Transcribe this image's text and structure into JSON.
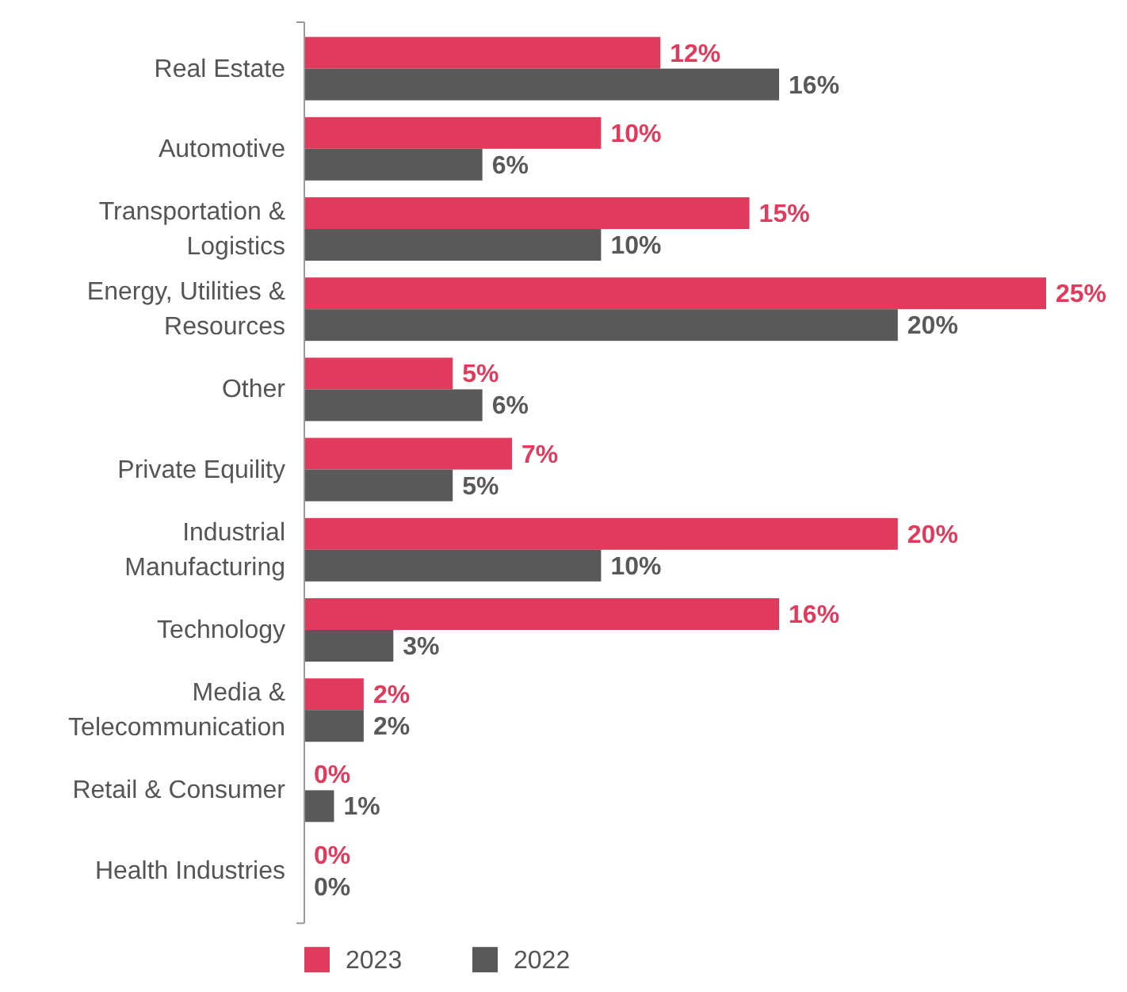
{
  "chart_data": {
    "type": "bar",
    "orientation": "horizontal",
    "relative": false,
    "legend": "bottom left",
    "categories": [
      "Real Estate",
      "Automotive",
      "Transportation & Logistics",
      "Energy, Utilities & Resources",
      "Other",
      "Private Equility",
      "Industrial Manufacturing",
      "Technology",
      "Media & Telecommunication",
      "Retail & Consumer",
      "Health Industries"
    ],
    "series": [
      {
        "name": "2023",
        "color": "#e03a5c",
        "values": [
          12,
          10,
          15,
          25,
          5,
          7,
          20,
          16,
          2,
          0,
          0
        ],
        "value_labels": [
          "12%",
          "10%",
          "15%",
          "25%",
          "5%",
          "7%",
          "20%",
          "16%",
          "2%",
          "0%",
          "0%"
        ]
      },
      {
        "name": "2022",
        "color": "#595959",
        "values": [
          16,
          6,
          10,
          20,
          6,
          5,
          10,
          3,
          2,
          1,
          0
        ],
        "value_labels": [
          "16%",
          "6%",
          "10%",
          "20%",
          "6%",
          "5%",
          "10%",
          "3%",
          "2%",
          "1%",
          "0%"
        ]
      }
    ]
  }
}
